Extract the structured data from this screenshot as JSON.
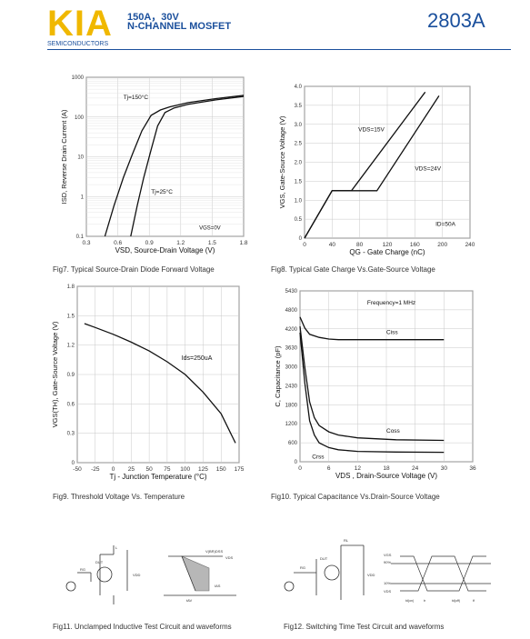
{
  "header": {
    "logo": "KIA",
    "logo_sub": "SEMICONDUCTORS",
    "line1": "150A，30V",
    "line2": "N-CHANNEL MOSFET",
    "part_number": "2803A",
    "brand_color": "#f0b800",
    "text_color": "#1a4f9c"
  },
  "chart_data": [
    {
      "id": "fig7",
      "type": "line",
      "caption": "Fig7. Typical Source-Drain Diode Forward Voltage",
      "xlabel": "VSD, Source-Drain Voltage (V)",
      "ylabel": "ISD, Reverse Drain Current (A)",
      "xlim": [
        0.1,
        1.8
      ],
      "ylim": [
        0.1,
        1000
      ],
      "yscale": "log",
      "xticks": [
        "0.3",
        "0.6",
        "0.9",
        "1.2",
        "1.5",
        "1.8"
      ],
      "yticks": [
        "0.1",
        "1",
        "10",
        "100",
        "1000"
      ],
      "annotations": [
        "Tj=150°C",
        "Tj=25°C",
        "VGS=0V"
      ],
      "series": [
        {
          "name": "Tj=150°C",
          "x": [
            0.3,
            0.4,
            0.5,
            0.6,
            0.7,
            0.8,
            0.9,
            1.0,
            1.2,
            1.5,
            1.8
          ],
          "y": [
            0.1,
            0.6,
            3,
            12,
            45,
            110,
            150,
            180,
            230,
            290,
            350
          ]
        },
        {
          "name": "Tj=25°C",
          "x": [
            0.58,
            0.65,
            0.72,
            0.8,
            0.87,
            0.95,
            1.05,
            1.2,
            1.5,
            1.8
          ],
          "y": [
            0.1,
            0.6,
            3,
            15,
            60,
            130,
            170,
            210,
            270,
            330
          ]
        }
      ]
    },
    {
      "id": "fig8",
      "type": "line",
      "caption": "Fig8. Typical Gate Charge Vs.Gate-Source Voltage",
      "xlabel": "QG - Gate Charge (nC)",
      "ylabel": "VGS, Gate-Source Voltage (V)",
      "xlim": [
        0,
        240
      ],
      "ylim": [
        0,
        4.0
      ],
      "xticks": [
        "0",
        "40",
        "80",
        "120",
        "160",
        "200",
        "240"
      ],
      "yticks": [
        "0",
        "0.5",
        "1.0",
        "1.5",
        "2.0",
        "2.5",
        "3.0",
        "3.5",
        "4.0"
      ],
      "annotations": [
        "VDS=15V",
        "VDS=24V",
        "ID=50A"
      ],
      "series": [
        {
          "name": "VDS=15V",
          "x": [
            0,
            40,
            68,
            175
          ],
          "y": [
            0,
            1.25,
            1.25,
            3.85
          ]
        },
        {
          "name": "VDS=24V",
          "x": [
            0,
            40,
            105,
            195
          ],
          "y": [
            0,
            1.25,
            1.25,
            3.75
          ]
        }
      ]
    },
    {
      "id": "fig9",
      "type": "line",
      "caption": "Fig9. Threshold Voltage Vs. Temperature",
      "xlabel": "Tj - Junction Temperature (°C)",
      "ylabel": "VGS(TH), Gate-Source Voltage (V)",
      "xlim": [
        -50,
        175
      ],
      "ylim": [
        0,
        1.8
      ],
      "xticks": [
        "-50",
        "-25",
        "0",
        "25",
        "50",
        "75",
        "100",
        "125",
        "150",
        "175"
      ],
      "yticks": [
        "0",
        "0.3",
        "0.6",
        "0.9",
        "1.2",
        "1.5",
        "1.8"
      ],
      "annotations": [
        "Ids=250uA"
      ],
      "series": [
        {
          "name": "Ids=250uA",
          "x": [
            -40,
            -25,
            0,
            25,
            50,
            75,
            100,
            125,
            150,
            170
          ],
          "y": [
            1.42,
            1.38,
            1.31,
            1.23,
            1.14,
            1.03,
            0.9,
            0.72,
            0.5,
            0.2
          ]
        }
      ]
    },
    {
      "id": "fig10",
      "type": "line",
      "caption": "Fig10. Typical Capacitance Vs.Drain-Source Voltage",
      "xlabel": "VDS , Drain-Source Voltage (V)",
      "ylabel": "C, Capacitance (pF)",
      "xlim": [
        0,
        36
      ],
      "ylim": [
        0,
        5430
      ],
      "xticks": [
        "0",
        "6",
        "12",
        "18",
        "24",
        "30",
        "36"
      ],
      "yticks": [
        "0",
        "600",
        "1200",
        "1800",
        "2430",
        "3000",
        "3630",
        "4200",
        "4800",
        "5430"
      ],
      "annotations": [
        "Frequency=1 MHz"
      ],
      "series": [
        {
          "name": "Ciss",
          "x": [
            0,
            1,
            2,
            4,
            6,
            8,
            12,
            20,
            30
          ],
          "y": [
            4600,
            4250,
            4050,
            3950,
            3900,
            3880,
            3880,
            3880,
            3880
          ]
        },
        {
          "name": "Coss",
          "x": [
            0,
            1,
            2,
            3,
            4,
            6,
            8,
            12,
            20,
            30
          ],
          "y": [
            4300,
            3000,
            1900,
            1400,
            1150,
            950,
            850,
            760,
            700,
            680
          ]
        },
        {
          "name": "Crss",
          "x": [
            0,
            1,
            2,
            3,
            4,
            6,
            8,
            12,
            20,
            30
          ],
          "y": [
            4100,
            2500,
            1300,
            850,
            600,
            450,
            380,
            330,
            310,
            300
          ]
        }
      ]
    }
  ],
  "fig11": {
    "caption": "Fig11. Unclamped Inductive Test Circuit and waveforms",
    "labels": [
      "DUT",
      "RG",
      "VDD",
      "L",
      "V(BR)DSS",
      "VDS",
      "IAS",
      "tAV"
    ]
  },
  "fig12": {
    "caption": "Fig12. Switching Time Test Circuit and waveforms",
    "labels": [
      "DUT",
      "VDD",
      "RL",
      "RG",
      "VGS",
      "VDS",
      "90%",
      "10%",
      "td(on)",
      "tr",
      "td(off)",
      "tf"
    ]
  }
}
